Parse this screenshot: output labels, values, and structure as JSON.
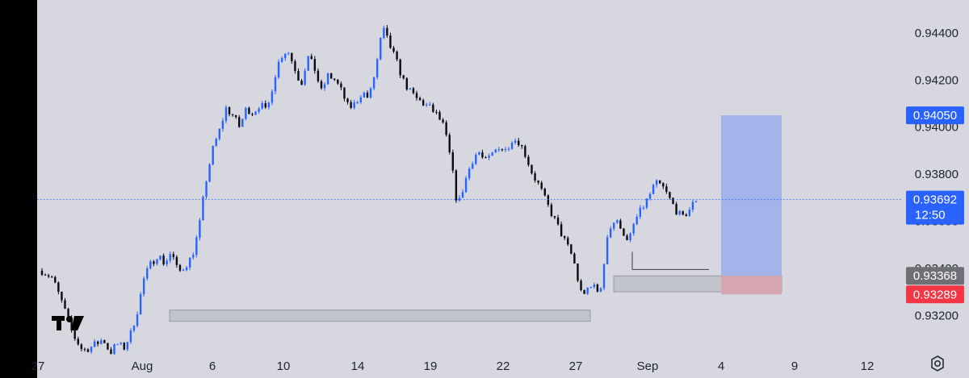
{
  "chart_data": {
    "type": "candlestick",
    "instrument_watermark": "TV",
    "colors": {
      "background": "#d7d8df",
      "up_candle": "#2962ff",
      "down_candle": "#0b0b0f",
      "current_price_line": "#2962ff",
      "take_profit_zone": "#a3b4ea",
      "stop_loss_zone": "#d6a7b0",
      "tag_current": "#2962ff",
      "tag_entry": "#6f7076",
      "tag_stop": "#f23645",
      "tag_target": "#2962ff",
      "demand_zone": "#c2c4cb"
    },
    "y_axis": {
      "ticks": [
        "0.94400",
        "0.94200",
        "0.94000",
        "0.93800",
        "0.93600",
        "0.93400",
        "0.93200"
      ],
      "range": [
        0.9304,
        0.9454
      ]
    },
    "x_axis": {
      "ticks": [
        "27",
        "Aug",
        "6",
        "10",
        "14",
        "19",
        "22",
        "27",
        "Sep",
        "4",
        "9",
        "12"
      ]
    },
    "price_tags": {
      "target": "0.94050",
      "current": "0.93692",
      "countdown": "12:50",
      "entry": "0.93368",
      "stop": "0.93289"
    },
    "close_path": [
      [
        0,
        0.9339
      ],
      [
        3,
        0.9336
      ],
      [
        6,
        0.9325
      ],
      [
        9,
        0.9312
      ],
      [
        12,
        0.9305
      ],
      [
        15,
        0.9307
      ],
      [
        18,
        0.931
      ],
      [
        20,
        0.9304
      ],
      [
        22,
        0.9308
      ],
      [
        24,
        0.9306
      ],
      [
        26,
        0.9312
      ],
      [
        28,
        0.9322
      ],
      [
        30,
        0.9336
      ],
      [
        32,
        0.9342
      ],
      [
        34,
        0.9346
      ],
      [
        36,
        0.9342
      ],
      [
        38,
        0.9347
      ],
      [
        40,
        0.9338
      ],
      [
        42,
        0.9341
      ],
      [
        44,
        0.9345
      ],
      [
        46,
        0.9356
      ],
      [
        48,
        0.9376
      ],
      [
        50,
        0.939
      ],
      [
        52,
        0.9398
      ],
      [
        54,
        0.9408
      ],
      [
        56,
        0.9405
      ],
      [
        58,
        0.94
      ],
      [
        60,
        0.9408
      ],
      [
        62,
        0.9406
      ],
      [
        64,
        0.941
      ],
      [
        66,
        0.9406
      ],
      [
        68,
        0.942
      ],
      [
        70,
        0.943
      ],
      [
        72,
        0.9433
      ],
      [
        74,
        0.9426
      ],
      [
        76,
        0.9418
      ],
      [
        78,
        0.943
      ],
      [
        80,
        0.9425
      ],
      [
        82,
        0.9415
      ],
      [
        84,
        0.9422
      ],
      [
        86,
        0.942
      ],
      [
        88,
        0.9415
      ],
      [
        90,
        0.9408
      ],
      [
        92,
        0.941
      ],
      [
        94,
        0.9415
      ],
      [
        96,
        0.9412
      ],
      [
        98,
        0.9425
      ],
      [
        100,
        0.9442
      ],
      [
        102,
        0.9435
      ],
      [
        104,
        0.9428
      ],
      [
        106,
        0.942
      ],
      [
        108,
        0.9415
      ],
      [
        110,
        0.9412
      ],
      [
        112,
        0.941
      ],
      [
        114,
        0.9408
      ],
      [
        116,
        0.9405
      ],
      [
        118,
        0.94
      ],
      [
        120,
        0.9386
      ],
      [
        122,
        0.9366
      ],
      [
        124,
        0.9376
      ],
      [
        126,
        0.9385
      ],
      [
        128,
        0.939
      ],
      [
        130,
        0.9385
      ],
      [
        132,
        0.9388
      ],
      [
        134,
        0.9392
      ],
      [
        136,
        0.939
      ],
      [
        138,
        0.9395
      ],
      [
        140,
        0.9394
      ],
      [
        142,
        0.9388
      ],
      [
        144,
        0.938
      ],
      [
        146,
        0.9375
      ],
      [
        148,
        0.9368
      ],
      [
        150,
        0.9362
      ],
      [
        152,
        0.9356
      ],
      [
        154,
        0.935
      ],
      [
        156,
        0.9344
      ],
      [
        158,
        0.933
      ],
      [
        160,
        0.933
      ],
      [
        162,
        0.9333
      ],
      [
        164,
        0.933
      ],
      [
        166,
        0.9355
      ],
      [
        168,
        0.936
      ],
      [
        170,
        0.9358
      ],
      [
        172,
        0.935
      ],
      [
        174,
        0.936
      ],
      [
        176,
        0.9365
      ],
      [
        178,
        0.937
      ],
      [
        180,
        0.9376
      ],
      [
        182,
        0.9375
      ],
      [
        184,
        0.937
      ],
      [
        186,
        0.9365
      ],
      [
        188,
        0.9361
      ],
      [
        190,
        0.9365
      ],
      [
        192,
        0.93692
      ]
    ],
    "zones": {
      "long_take_profit": [
        0.93368,
        0.9405
      ],
      "long_stop": [
        0.93289,
        0.93368
      ],
      "left_demand": [
        0.9318,
        0.93195
      ],
      "right_demand": [
        0.933,
        0.93368
      ],
      "low_marker": 0.93395
    }
  }
}
